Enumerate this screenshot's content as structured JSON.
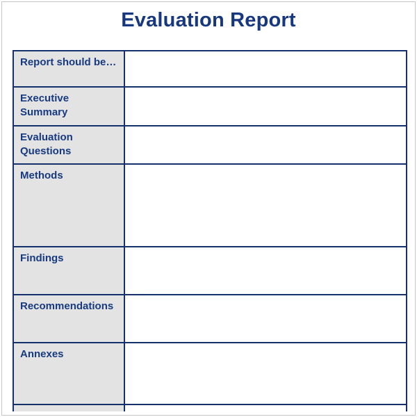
{
  "document": {
    "title": "Evaluation Report"
  },
  "table": {
    "rows": [
      {
        "label": "Report should be…"
      },
      {
        "label": "Executive\nSummary"
      },
      {
        "label": "Evaluation\nQuestions"
      },
      {
        "label": "Methods"
      },
      {
        "label": "Findings"
      },
      {
        "label": "Recommendations"
      },
      {
        "label": "Annexes"
      }
    ]
  },
  "colors": {
    "title_navy": "#17387f",
    "label_navy": "#173a80",
    "border_navy": "#15316b",
    "header_cell_gray": "#e3e3e3",
    "frame_gray": "#c6c6c6"
  }
}
